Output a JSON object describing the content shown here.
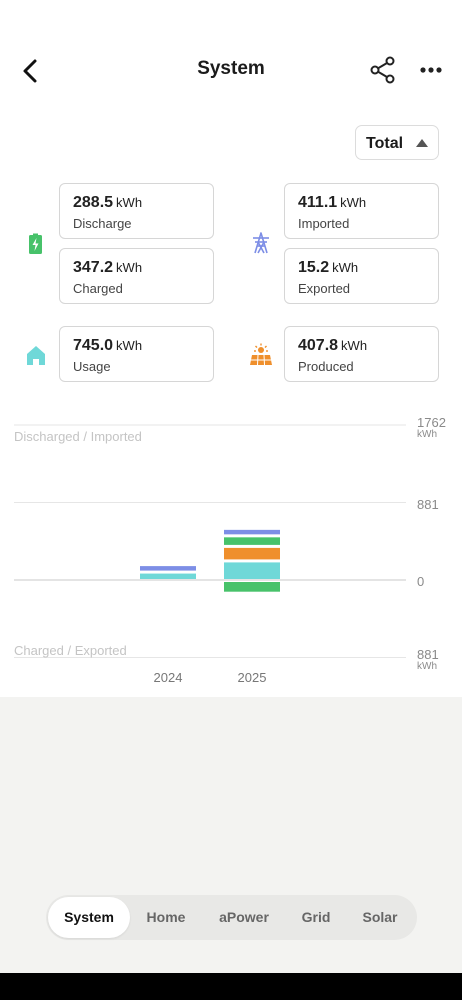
{
  "header": {
    "title": "System"
  },
  "period": {
    "selected": "Total"
  },
  "cards": {
    "discharge": {
      "value": "288.5",
      "unit": "kWh",
      "label": "Discharge"
    },
    "charged": {
      "value": "347.2",
      "unit": "kWh",
      "label": "Charged"
    },
    "imported": {
      "value": "411.1",
      "unit": "kWh",
      "label": "Imported"
    },
    "exported": {
      "value": "15.2",
      "unit": "kWh",
      "label": "Exported"
    },
    "usage": {
      "value": "745.0",
      "unit": "kWh",
      "label": "Usage"
    },
    "produced": {
      "value": "407.8",
      "unit": "kWh",
      "label": "Produced"
    }
  },
  "icons": {
    "battery": "battery-icon",
    "grid": "grid-tower-icon",
    "home": "home-icon",
    "solar": "solar-panel-icon"
  },
  "colors": {
    "battery_green": "#47c26a",
    "grid_blue": "#7d8ee6",
    "home_cyan": "#6fd8d8",
    "solar_orange": "#ef8f2c"
  },
  "chart_labels": {
    "top_axis_title": "Discharged / Imported",
    "bottom_axis_title": "Charged / Exported",
    "tick_top": "1762",
    "tick_top_unit": "kWh",
    "tick_mid": "881",
    "tick_zero": "0",
    "tick_bottom": "881",
    "tick_bottom_unit": "kWh"
  },
  "chart_data": {
    "type": "bar",
    "stacked": true,
    "categories": [
      "2024",
      "2025"
    ],
    "ylim": [
      -881,
      1762
    ],
    "series": [
      {
        "color": "#6fd8d8",
        "values": [
          90,
          217
        ]
      },
      {
        "color": "#ef8f2c",
        "values": [
          0,
          165
        ]
      },
      {
        "color": "#47c26a",
        "values": [
          0,
          120
        ]
      },
      {
        "color": "#7d8ee6",
        "values": [
          85,
          85
        ]
      },
      {
        "color": "#47c26a",
        "values": [
          0,
          -150
        ]
      }
    ],
    "grid": true
  },
  "tabs": [
    {
      "label": "System",
      "active": true
    },
    {
      "label": "Home",
      "active": false
    },
    {
      "label": "aPower",
      "active": false
    },
    {
      "label": "Grid",
      "active": false
    },
    {
      "label": "Solar",
      "active": false
    }
  ]
}
